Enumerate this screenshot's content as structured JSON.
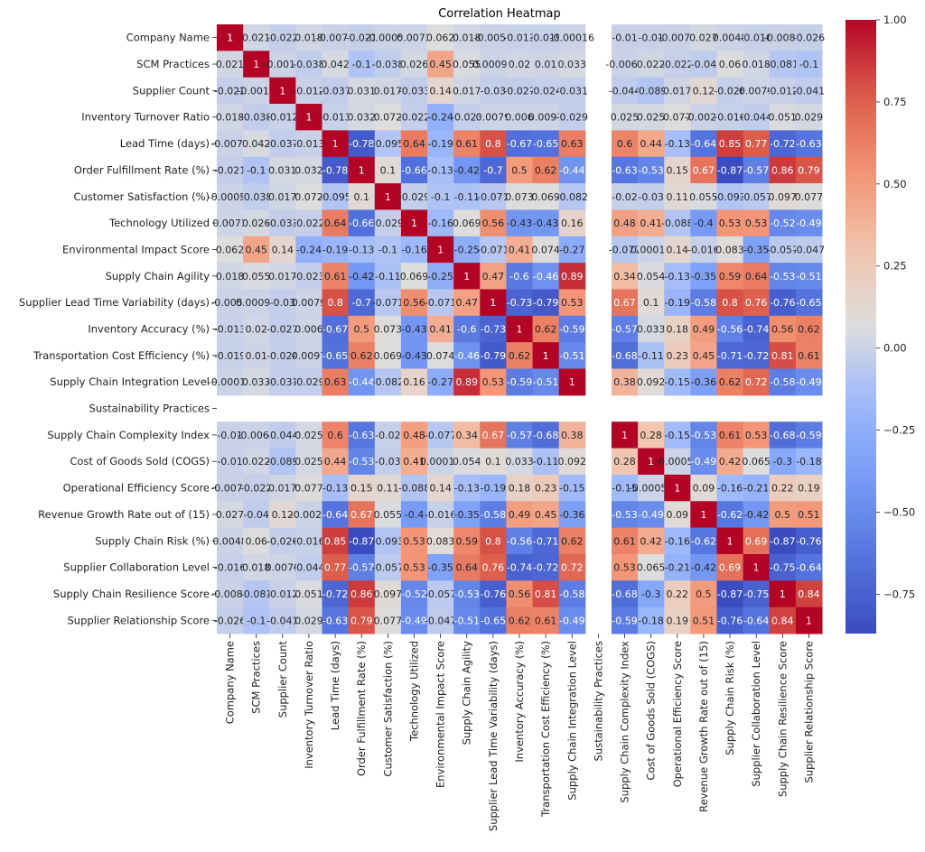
{
  "chart_data": {
    "type": "heatmap",
    "title": "Correlation Heatmap",
    "xlabel": "",
    "ylabel": "",
    "colormap": "coolwarm",
    "vmin": -0.87,
    "vmax": 1.0,
    "colorbar_ticks": [
      "1.00",
      "0.75",
      "0.50",
      "0.25",
      "0.00",
      "−0.25",
      "−0.50",
      "−0.75"
    ],
    "colorbar_tick_values": [
      1.0,
      0.75,
      0.5,
      0.25,
      0.0,
      -0.25,
      -0.5,
      -0.75
    ],
    "legend": "right (colorbar)",
    "labels": [
      "Company Name",
      "SCM Practices",
      "Supplier Count",
      "Inventory Turnover Ratio",
      "Lead Time (days)",
      "Order Fulfillment Rate (%)",
      "Customer Satisfaction (%)",
      "Technology Utilized",
      "Environmental Impact Score",
      "Supply Chain Agility",
      "Supplier Lead Time Variability (days)",
      "Inventory Accuracy (%)",
      "Transportation Cost Efficiency (%)",
      "Supply Chain Integration Level",
      "Sustainability Practices",
      "Supply Chain Complexity Index",
      "Cost of Goods Sold (COGS)",
      "Operational Efficiency Score",
      "Revenue Growth Rate out of (15)",
      "Supply Chain Risk (%)",
      "Supplier Collaboration Level",
      "Supply Chain Resilience Score",
      "Supplier Relationship Score"
    ],
    "matrix": [
      [
        1,
        0.021,
        -0.022,
        0.018,
        -0.0073,
        -0.021,
        -0.00053,
        0.0073,
        0.062,
        0.018,
        -0.0054,
        -0.013,
        -0.019,
        -0.00016,
        null,
        -0.01,
        -0.01,
        -0.0077,
        0.027,
        0.0048,
        -0.016,
        -0.0083,
        -0.026
      ],
      [
        0.021,
        1,
        -0.0011,
        -0.038,
        0.042,
        -0.1,
        -0.038,
        0.026,
        0.45,
        0.055,
        0.00096,
        0.02,
        0.01,
        0.033,
        null,
        -0.0062,
        0.022,
        -0.022,
        -0.04,
        0.06,
        0.018,
        -0.081,
        -0.1
      ],
      [
        -0.022,
        -0.0011,
        1,
        -0.012,
        -0.037,
        0.031,
        0.017,
        -0.033,
        0.14,
        0.017,
        -0.03,
        -0.027,
        -0.024,
        -0.031,
        null,
        -0.044,
        -0.089,
        0.017,
        0.12,
        -0.026,
        0.0079,
        -0.012,
        -0.041
      ],
      [
        0.018,
        -0.038,
        -0.012,
        1,
        -0.013,
        0.032,
        0.072,
        -0.022,
        -0.24,
        -0.023,
        0.0079,
        0.006,
        0.0097,
        -0.029,
        null,
        0.025,
        0.025,
        0.077,
        -0.0026,
        -0.016,
        -0.044,
        0.051,
        0.029
      ],
      [
        -0.0073,
        0.042,
        -0.037,
        -0.013,
        1,
        -0.78,
        -0.095,
        0.64,
        -0.19,
        0.61,
        0.8,
        -0.67,
        -0.65,
        0.63,
        null,
        0.6,
        0.44,
        -0.13,
        -0.64,
        0.85,
        0.77,
        -0.72,
        -0.63
      ],
      [
        -0.021,
        -0.1,
        0.031,
        0.032,
        -0.78,
        1,
        0.1,
        -0.66,
        -0.13,
        -0.42,
        -0.7,
        0.5,
        0.62,
        -0.44,
        null,
        -0.63,
        -0.53,
        0.15,
        0.67,
        -0.87,
        -0.57,
        0.86,
        0.79
      ],
      [
        -0.00053,
        -0.038,
        0.017,
        0.072,
        -0.095,
        0.1,
        1,
        -0.029,
        -0.1,
        -0.11,
        -0.071,
        0.073,
        0.069,
        -0.082,
        null,
        -0.02,
        -0.03,
        0.11,
        0.055,
        -0.093,
        -0.057,
        0.097,
        0.077
      ],
      [
        0.0073,
        0.026,
        -0.033,
        -0.022,
        0.64,
        -0.66,
        -0.029,
        1,
        -0.16,
        0.069,
        0.56,
        -0.43,
        -0.43,
        0.16,
        null,
        0.48,
        0.41,
        -0.088,
        -0.4,
        0.53,
        0.53,
        -0.52,
        -0.49
      ],
      [
        0.062,
        0.45,
        0.14,
        -0.24,
        -0.19,
        -0.13,
        -0.1,
        -0.16,
        1,
        -0.25,
        -0.071,
        0.41,
        0.074,
        -0.27,
        null,
        -0.077,
        0.00013,
        0.14,
        -0.016,
        0.083,
        -0.35,
        -0.057,
        -0.047
      ],
      [
        0.018,
        0.055,
        0.017,
        -0.023,
        0.61,
        -0.42,
        -0.11,
        0.069,
        -0.25,
        1,
        0.47,
        -0.6,
        -0.46,
        0.89,
        null,
        0.34,
        0.054,
        -0.13,
        -0.35,
        0.59,
        0.64,
        -0.53,
        -0.51
      ],
      [
        -0.0054,
        0.00096,
        -0.03,
        0.0079,
        0.8,
        -0.7,
        -0.071,
        0.56,
        -0.071,
        0.47,
        1,
        -0.73,
        -0.79,
        0.53,
        null,
        0.67,
        0.1,
        -0.19,
        -0.58,
        0.8,
        0.76,
        -0.76,
        -0.65
      ],
      [
        -0.013,
        0.02,
        -0.027,
        0.006,
        -0.67,
        0.5,
        0.073,
        -0.43,
        0.41,
        -0.6,
        -0.73,
        1,
        0.62,
        -0.59,
        null,
        -0.57,
        0.033,
        0.18,
        0.49,
        -0.56,
        -0.74,
        0.56,
        0.62
      ],
      [
        -0.019,
        0.01,
        -0.024,
        0.0097,
        -0.65,
        0.62,
        0.069,
        -0.43,
        0.074,
        -0.46,
        -0.79,
        0.62,
        1,
        -0.51,
        null,
        -0.68,
        -0.11,
        0.23,
        0.45,
        -0.71,
        -0.72,
        0.81,
        0.61
      ],
      [
        -0.00016,
        0.033,
        -0.031,
        -0.029,
        0.63,
        -0.44,
        -0.082,
        0.16,
        -0.27,
        0.89,
        0.53,
        -0.59,
        -0.51,
        1,
        null,
        0.38,
        0.092,
        -0.15,
        -0.36,
        0.62,
        0.72,
        -0.58,
        -0.49
      ],
      [
        null,
        null,
        null,
        null,
        null,
        null,
        null,
        null,
        null,
        null,
        null,
        null,
        null,
        null,
        null,
        null,
        null,
        null,
        null,
        null,
        null,
        null,
        null
      ],
      [
        -0.01,
        -0.0062,
        -0.044,
        0.025,
        0.6,
        -0.63,
        -0.02,
        0.48,
        -0.077,
        0.34,
        0.67,
        -0.57,
        -0.68,
        0.38,
        null,
        1,
        0.28,
        -0.15,
        -0.53,
        0.61,
        0.53,
        -0.68,
        -0.59
      ],
      [
        -0.01,
        0.022,
        -0.089,
        0.025,
        0.44,
        -0.53,
        -0.03,
        0.41,
        0.00013,
        0.054,
        0.1,
        0.033,
        -0.11,
        0.092,
        null,
        0.28,
        1,
        -0.00059,
        -0.49,
        0.42,
        0.065,
        -0.3,
        -0.18
      ],
      [
        -0.0077,
        -0.022,
        0.017,
        0.077,
        -0.13,
        0.15,
        0.11,
        -0.088,
        0.14,
        -0.13,
        -0.19,
        0.18,
        0.23,
        -0.15,
        null,
        -0.15,
        -0.00059,
        1,
        0.09,
        -0.16,
        -0.21,
        0.22,
        0.19
      ],
      [
        0.027,
        -0.04,
        0.12,
        -0.0026,
        -0.64,
        0.67,
        0.055,
        -0.4,
        -0.016,
        -0.35,
        -0.58,
        0.49,
        0.45,
        -0.36,
        null,
        -0.53,
        -0.49,
        0.09,
        1,
        -0.62,
        -0.42,
        0.5,
        0.51
      ],
      [
        0.0048,
        0.06,
        -0.026,
        -0.016,
        0.85,
        -0.87,
        -0.093,
        0.53,
        0.083,
        0.59,
        0.8,
        -0.56,
        -0.71,
        0.62,
        null,
        0.61,
        0.42,
        -0.16,
        -0.62,
        1,
        0.69,
        -0.87,
        -0.76
      ],
      [
        -0.016,
        0.018,
        0.0079,
        -0.044,
        0.77,
        -0.57,
        -0.057,
        0.53,
        -0.35,
        0.64,
        0.76,
        -0.74,
        -0.72,
        0.72,
        null,
        0.53,
        0.065,
        -0.21,
        -0.42,
        0.69,
        1,
        -0.75,
        -0.64
      ],
      [
        -0.0083,
        -0.081,
        -0.012,
        0.051,
        -0.72,
        0.86,
        0.097,
        -0.52,
        -0.057,
        -0.53,
        -0.76,
        0.56,
        0.81,
        -0.58,
        null,
        -0.68,
        -0.3,
        0.22,
        0.5,
        -0.87,
        -0.75,
        1,
        0.84
      ],
      [
        -0.026,
        -0.1,
        -0.041,
        0.029,
        -0.63,
        0.79,
        0.077,
        -0.49,
        -0.047,
        -0.51,
        -0.65,
        0.62,
        0.61,
        -0.49,
        null,
        -0.59,
        -0.18,
        0.19,
        0.51,
        -0.76,
        -0.64,
        0.84,
        1
      ]
    ]
  }
}
